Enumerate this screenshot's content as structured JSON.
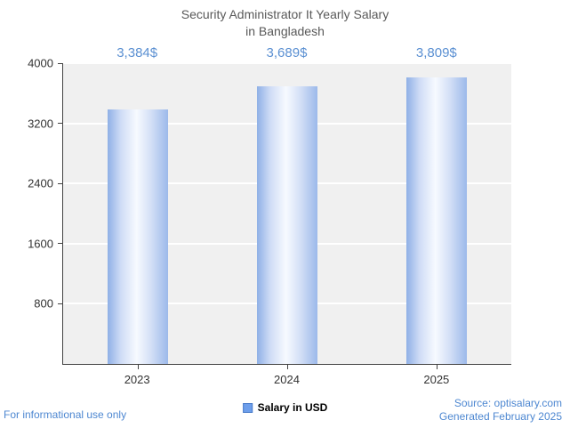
{
  "title": {
    "line1": "Security Administrator It Yearly Salary",
    "line2": "in Bangladesh"
  },
  "chart_data": {
    "type": "bar",
    "title": "Security Administrator It Yearly Salary in Bangladesh",
    "categories": [
      "2023",
      "2024",
      "2025"
    ],
    "values": [
      3384,
      3689,
      3809
    ],
    "value_labels": [
      "3,384$",
      "3,689$",
      "3,809$"
    ],
    "xlabel": "",
    "ylabel": "",
    "ylim": [
      0,
      4000
    ],
    "yticks": [
      800,
      1600,
      2400,
      3200,
      4000
    ],
    "grid": true,
    "legend_position": "bottom",
    "legend": [
      {
        "label": "Salary in USD",
        "color": "#6d9eeb"
      }
    ]
  },
  "footer": {
    "left": "For informational use only",
    "source": "Source: optisalary.com",
    "generated": "Generated February 2025"
  },
  "colors": {
    "accent_blue": "#5b90d2",
    "footer_blue": "#4d87d1",
    "title": "#595959",
    "text": "#333333",
    "axis": "#424242",
    "plot_bg": "#f0f0f0",
    "grid": "#ffffff",
    "bar_edge": "#8fb0e6",
    "bar_edge2": "#9cb9ea",
    "bar_center": "#f7faff",
    "legend_swatch": "#6d9eeb"
  }
}
